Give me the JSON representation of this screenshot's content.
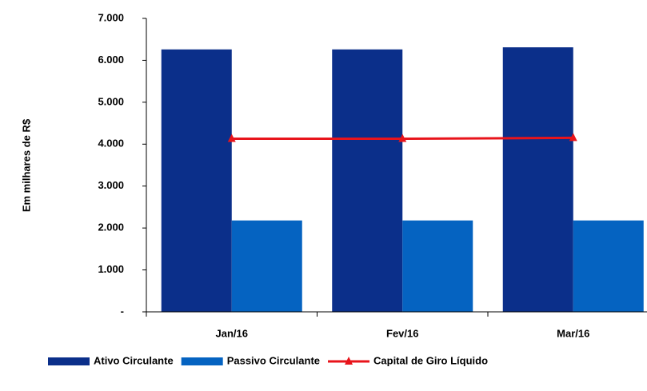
{
  "chart_data": {
    "type": "bar_line",
    "y_axis_label": "Em milhares de R$",
    "categories": [
      "Jan/16",
      "Fev/16",
      "Mar/16"
    ],
    "series": [
      {
        "name": "Ativo Circulante",
        "type": "bar",
        "color": "#0b2f8a",
        "values": [
          6260,
          6260,
          6310
        ]
      },
      {
        "name": "Passivo Circulante",
        "type": "bar",
        "color": "#0563c1",
        "values": [
          2180,
          2180,
          2180
        ]
      },
      {
        "name": "Capital de Giro Líquido",
        "type": "line",
        "color": "#e8141b",
        "values": [
          4130,
          4130,
          4150
        ]
      }
    ],
    "ylim": [
      0,
      7000
    ],
    "yticks": [
      {
        "value": 0,
        "label": "-"
      },
      {
        "value": 1000,
        "label": "1.000"
      },
      {
        "value": 2000,
        "label": "2.000"
      },
      {
        "value": 3000,
        "label": "3.000"
      },
      {
        "value": 4000,
        "label": "4.000"
      },
      {
        "value": 5000,
        "label": "5.000"
      },
      {
        "value": 6000,
        "label": "6.000"
      },
      {
        "value": 7000,
        "label": "7.000"
      }
    ],
    "legend": "bottom"
  }
}
